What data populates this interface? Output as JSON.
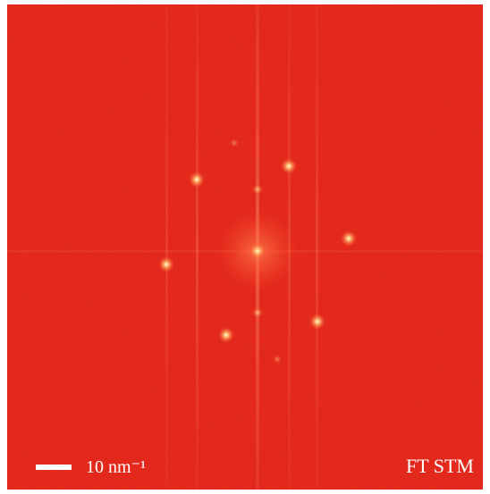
{
  "image": {
    "label": "FT STM",
    "scale_bar": {
      "label": "10 nm⁻¹"
    }
  }
}
